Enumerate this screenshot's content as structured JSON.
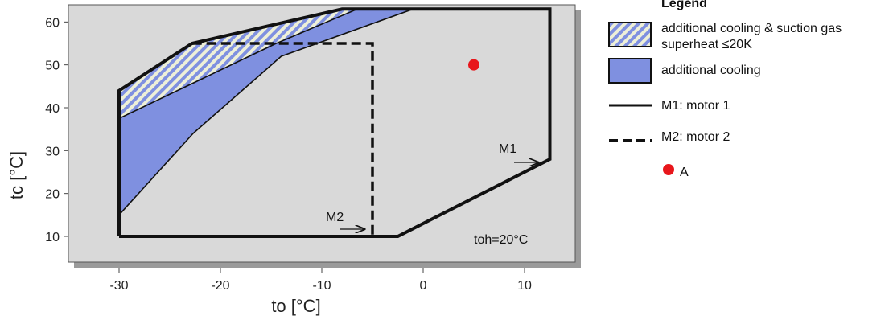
{
  "chart_data": {
    "type": "area",
    "xlabel": "to [°C]",
    "ylabel": "tc [°C]",
    "xlim": [
      -35,
      15
    ],
    "ylim": [
      4,
      64
    ],
    "xticks": [
      -30,
      -20,
      -10,
      0,
      10
    ],
    "yticks": [
      10,
      20,
      30,
      40,
      50,
      60
    ],
    "background": "#d9d9d9",
    "legend_title": "Legend",
    "legend_placement": "right",
    "series": [
      {
        "name": "additional cooling & suction gas superheat ≤20K",
        "kind": "hatched-area",
        "fill": "#7f90e0",
        "hatch": "#eef0d8",
        "points": [
          [
            -30,
            44
          ],
          [
            -22.8,
            55
          ],
          [
            -8,
            63
          ],
          [
            -5,
            63
          ],
          [
            -30,
            37.5
          ]
        ]
      },
      {
        "name": "additional cooling",
        "kind": "area",
        "fill": "#7f90e0",
        "points": [
          [
            -30,
            37.5
          ],
          [
            -14.5,
            55
          ],
          [
            -6.5,
            63
          ],
          [
            -1,
            63
          ],
          [
            -14,
            52
          ],
          [
            -22.7,
            34
          ],
          [
            -30,
            15
          ]
        ]
      },
      {
        "name": "M1: motor 1",
        "kind": "solid-line",
        "points": [
          [
            -30,
            10
          ],
          [
            -2.5,
            10
          ],
          [
            12.5,
            28
          ],
          [
            12.5,
            63
          ],
          [
            -8,
            63
          ],
          [
            -22.8,
            55
          ],
          [
            -30,
            44
          ],
          [
            -30,
            10
          ]
        ]
      },
      {
        "name": "M2: motor 2",
        "kind": "dashed-line",
        "points": [
          [
            -22.8,
            55
          ],
          [
            -5,
            55
          ],
          [
            -5,
            10
          ]
        ]
      },
      {
        "name": "A",
        "kind": "point",
        "color": "#e8161b",
        "points": [
          [
            5,
            50
          ]
        ]
      }
    ],
    "annotations": [
      {
        "text": "M1",
        "x": 9,
        "y": 31
      },
      {
        "text": "M2",
        "x": -8.2,
        "y": 16
      },
      {
        "text": "toh=20°C",
        "x": 9,
        "y": 10.6
      }
    ]
  }
}
